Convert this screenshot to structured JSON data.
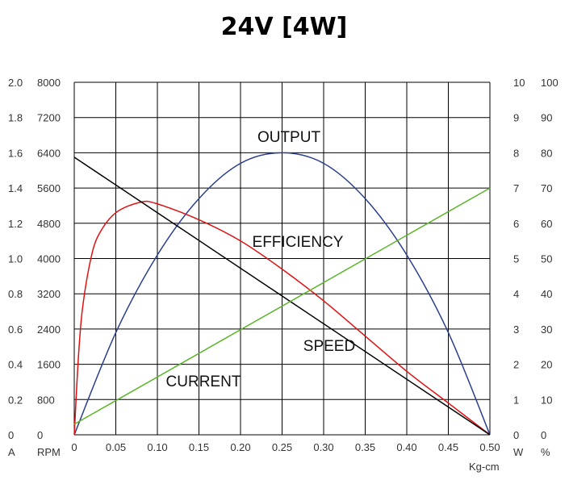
{
  "chart_data": {
    "type": "line",
    "title": "24V [4W]",
    "xlabel": "Kg-cm",
    "x_ticks": [
      "0",
      "0.05",
      "0.10",
      "0.15",
      "0.20",
      "0.25",
      "0.30",
      "0.35",
      "0.40",
      "0.45",
      "0.50"
    ],
    "xlim": [
      0,
      0.5
    ],
    "grid": true,
    "axes": [
      {
        "id": "current",
        "unit": "A",
        "side": "left-outer",
        "ticks": [
          "0",
          "0.2",
          "0.4",
          "0.6",
          "0.8",
          "1.0",
          "1.2",
          "1.4",
          "1.6",
          "1.8",
          "2.0"
        ],
        "ylim": [
          0,
          2.0
        ]
      },
      {
        "id": "speed",
        "unit": "RPM",
        "side": "left-inner",
        "ticks": [
          "0",
          "800",
          "1600",
          "2400",
          "3200",
          "4000",
          "4800",
          "5600",
          "6400",
          "7200",
          "8000"
        ],
        "ylim": [
          0,
          8000
        ]
      },
      {
        "id": "output",
        "unit": "W",
        "side": "right-inner",
        "ticks": [
          "0",
          "1",
          "2",
          "3",
          "4",
          "5",
          "6",
          "7",
          "8",
          "9",
          "10"
        ],
        "ylim": [
          0,
          10
        ]
      },
      {
        "id": "efficiency",
        "unit": "%",
        "side": "right-outer",
        "ticks": [
          "0",
          "10",
          "20",
          "30",
          "40",
          "50",
          "60",
          "70",
          "80",
          "90",
          "100"
        ],
        "ylim": [
          0,
          100
        ]
      }
    ],
    "series": [
      {
        "name": "OUTPUT",
        "axis": "output",
        "color": "#2b3f8f",
        "x": [
          0,
          0.05,
          0.1,
          0.15,
          0.2,
          0.25,
          0.3,
          0.35,
          0.4,
          0.45,
          0.5
        ],
        "y": [
          0,
          2.9,
          5.1,
          6.7,
          7.7,
          8.0,
          7.7,
          6.7,
          5.1,
          2.9,
          0
        ]
      },
      {
        "name": "EFFICIENCY",
        "axis": "efficiency",
        "color": "#e01010",
        "x": [
          0,
          0.005,
          0.01,
          0.02,
          0.03,
          0.05,
          0.08,
          0.1,
          0.15,
          0.2,
          0.25,
          0.3,
          0.35,
          0.4,
          0.45,
          0.5
        ],
        "y": [
          0,
          22,
          36,
          50,
          57,
          63,
          66,
          65.5,
          61,
          55,
          47,
          38,
          28,
          18,
          9,
          0
        ]
      },
      {
        "name": "SPEED",
        "axis": "speed",
        "color": "#000000",
        "x": [
          0,
          0.5
        ],
        "y": [
          6300,
          0
        ]
      },
      {
        "name": "CURRENT",
        "axis": "current",
        "color": "#5ab52a",
        "x": [
          0,
          0.5
        ],
        "y": [
          0.06,
          1.4
        ]
      }
    ]
  }
}
